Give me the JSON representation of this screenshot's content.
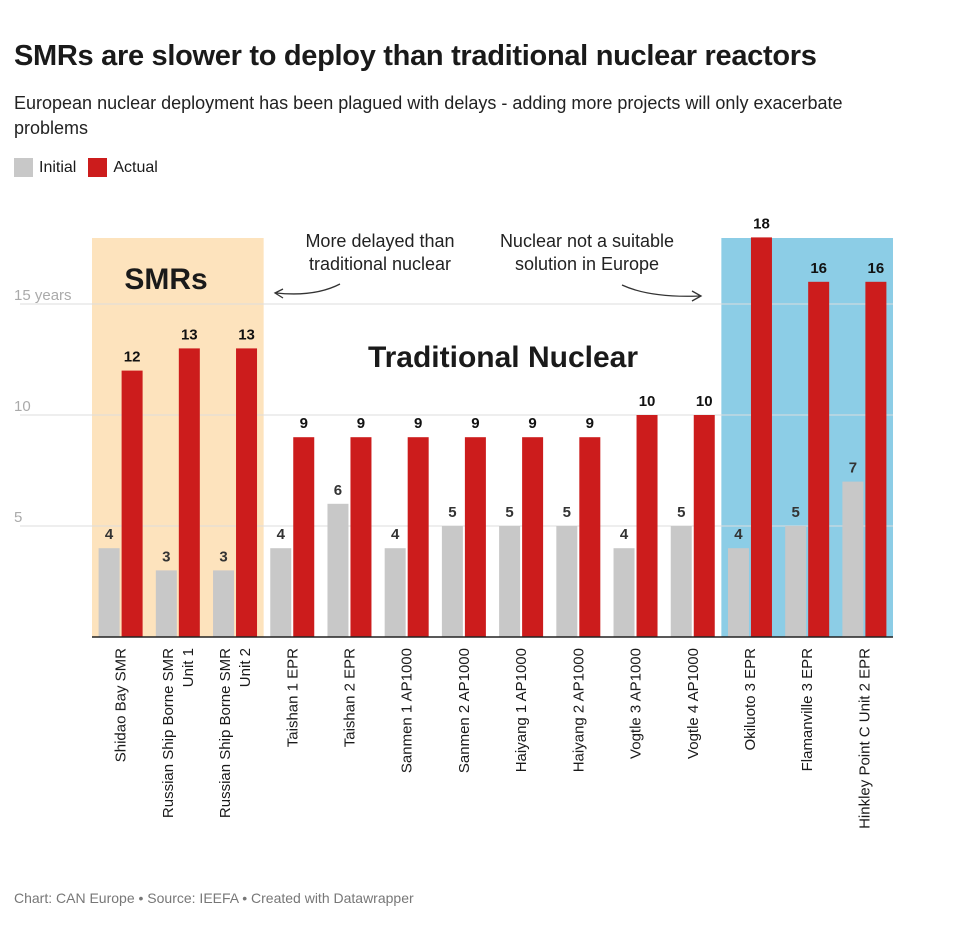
{
  "header": {
    "title": "SMRs are slower to deploy than traditional nuclear reactors",
    "subtitle": "European nuclear deployment has been plagued with delays - adding more projects will only exacerbate problems"
  },
  "legend": {
    "items": [
      {
        "label": "Initial",
        "color": "#c8c8c8"
      },
      {
        "label": "Actual",
        "color": "#cc1c1c"
      }
    ]
  },
  "annotations": {
    "smr_region_label": "SMRs",
    "traditional_label": "Traditional Nuclear",
    "note_left_line1": "More delayed than",
    "note_left_line2": "traditional nuclear",
    "note_right_line1": "Nuclear not a suitable",
    "note_right_line2": "solution in Europe",
    "smr_region_color": "#fde3bd",
    "europe_region_color": "#8ccde6"
  },
  "footer": {
    "credit": "Chart: CAN Europe • Source: IEEFA • Created with Datawrapper"
  },
  "chart_data": {
    "type": "bar",
    "title": "SMRs are slower to deploy than traditional nuclear reactors",
    "categories": [
      "Shidao Bay SMR",
      "Russian Ship Borne SMR Unit 1",
      "Russian Ship Borne SMR Unit 2",
      "Taishan 1 EPR",
      "Taishan 2 EPR",
      "Sanmen 1 AP1000",
      "Sanmen 2 AP1000",
      "Haiyang 1 AP1000",
      "Haiyang 2 AP1000",
      "Vogtle 3 AP1000",
      "Vogtle 4 AP1000",
      "Okiluoto 3 EPR",
      "Flamanville 3 EPR",
      "Hinkley Point C Unit 2 EPR"
    ],
    "category_lines": [
      [
        "Shidao Bay SMR"
      ],
      [
        "Russian Ship Borne SMR",
        "Unit 1"
      ],
      [
        "Russian Ship Borne SMR",
        "Unit 2"
      ],
      [
        "Taishan 1 EPR"
      ],
      [
        "Taishan 2 EPR"
      ],
      [
        "Sanmen 1 AP1000"
      ],
      [
        "Sanmen 2 AP1000"
      ],
      [
        "Haiyang 1 AP1000"
      ],
      [
        "Haiyang 2 AP1000"
      ],
      [
        "Vogtle 3 AP1000"
      ],
      [
        "Vogtle 4 AP1000"
      ],
      [
        "Okiluoto 3 EPR"
      ],
      [
        "Flamanville 3 EPR"
      ],
      [
        "Hinkley Point C Unit 2 EPR"
      ]
    ],
    "series": [
      {
        "name": "Initial",
        "color": "#c8c8c8",
        "values": [
          4,
          3,
          3,
          4,
          6,
          4,
          5,
          5,
          5,
          4,
          5,
          4,
          5,
          7
        ]
      },
      {
        "name": "Actual",
        "color": "#cc1c1c",
        "values": [
          12,
          13,
          13,
          9,
          9,
          9,
          9,
          9,
          9,
          10,
          10,
          18,
          16,
          16
        ]
      }
    ],
    "yticks": [
      {
        "value": 5,
        "label": "5"
      },
      {
        "value": 10,
        "label": "10"
      },
      {
        "value": 15,
        "label": "15 years"
      }
    ],
    "ylim": [
      0,
      18
    ],
    "grid": true,
    "legend_position": "top-left"
  }
}
